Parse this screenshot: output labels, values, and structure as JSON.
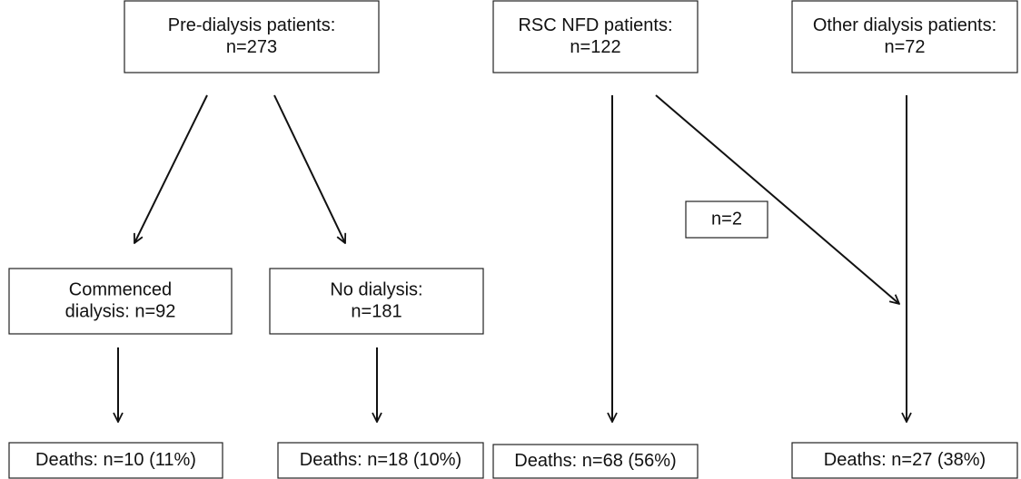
{
  "nodes": [
    {
      "lines": [
        "Pre-dialysis patients:",
        "n=273"
      ]
    },
    {
      "lines": [
        "RSC NFD patients:",
        "n=122"
      ]
    },
    {
      "lines": [
        "Other dialysis patients:",
        "n=72"
      ]
    },
    {
      "lines": [
        "Commenced",
        "dialysis: n=92"
      ]
    },
    {
      "lines": [
        "No dialysis:",
        "n=181"
      ]
    },
    {
      "lines": [
        "n=2"
      ]
    },
    {
      "lines": [
        "Deaths: n=10 (11%)"
      ]
    },
    {
      "lines": [
        "Deaths: n=18 (10%)"
      ]
    },
    {
      "lines": [
        "Deaths: n=68 (56%)"
      ]
    },
    {
      "lines": [
        "Deaths: n=27 (38%)"
      ]
    }
  ]
}
